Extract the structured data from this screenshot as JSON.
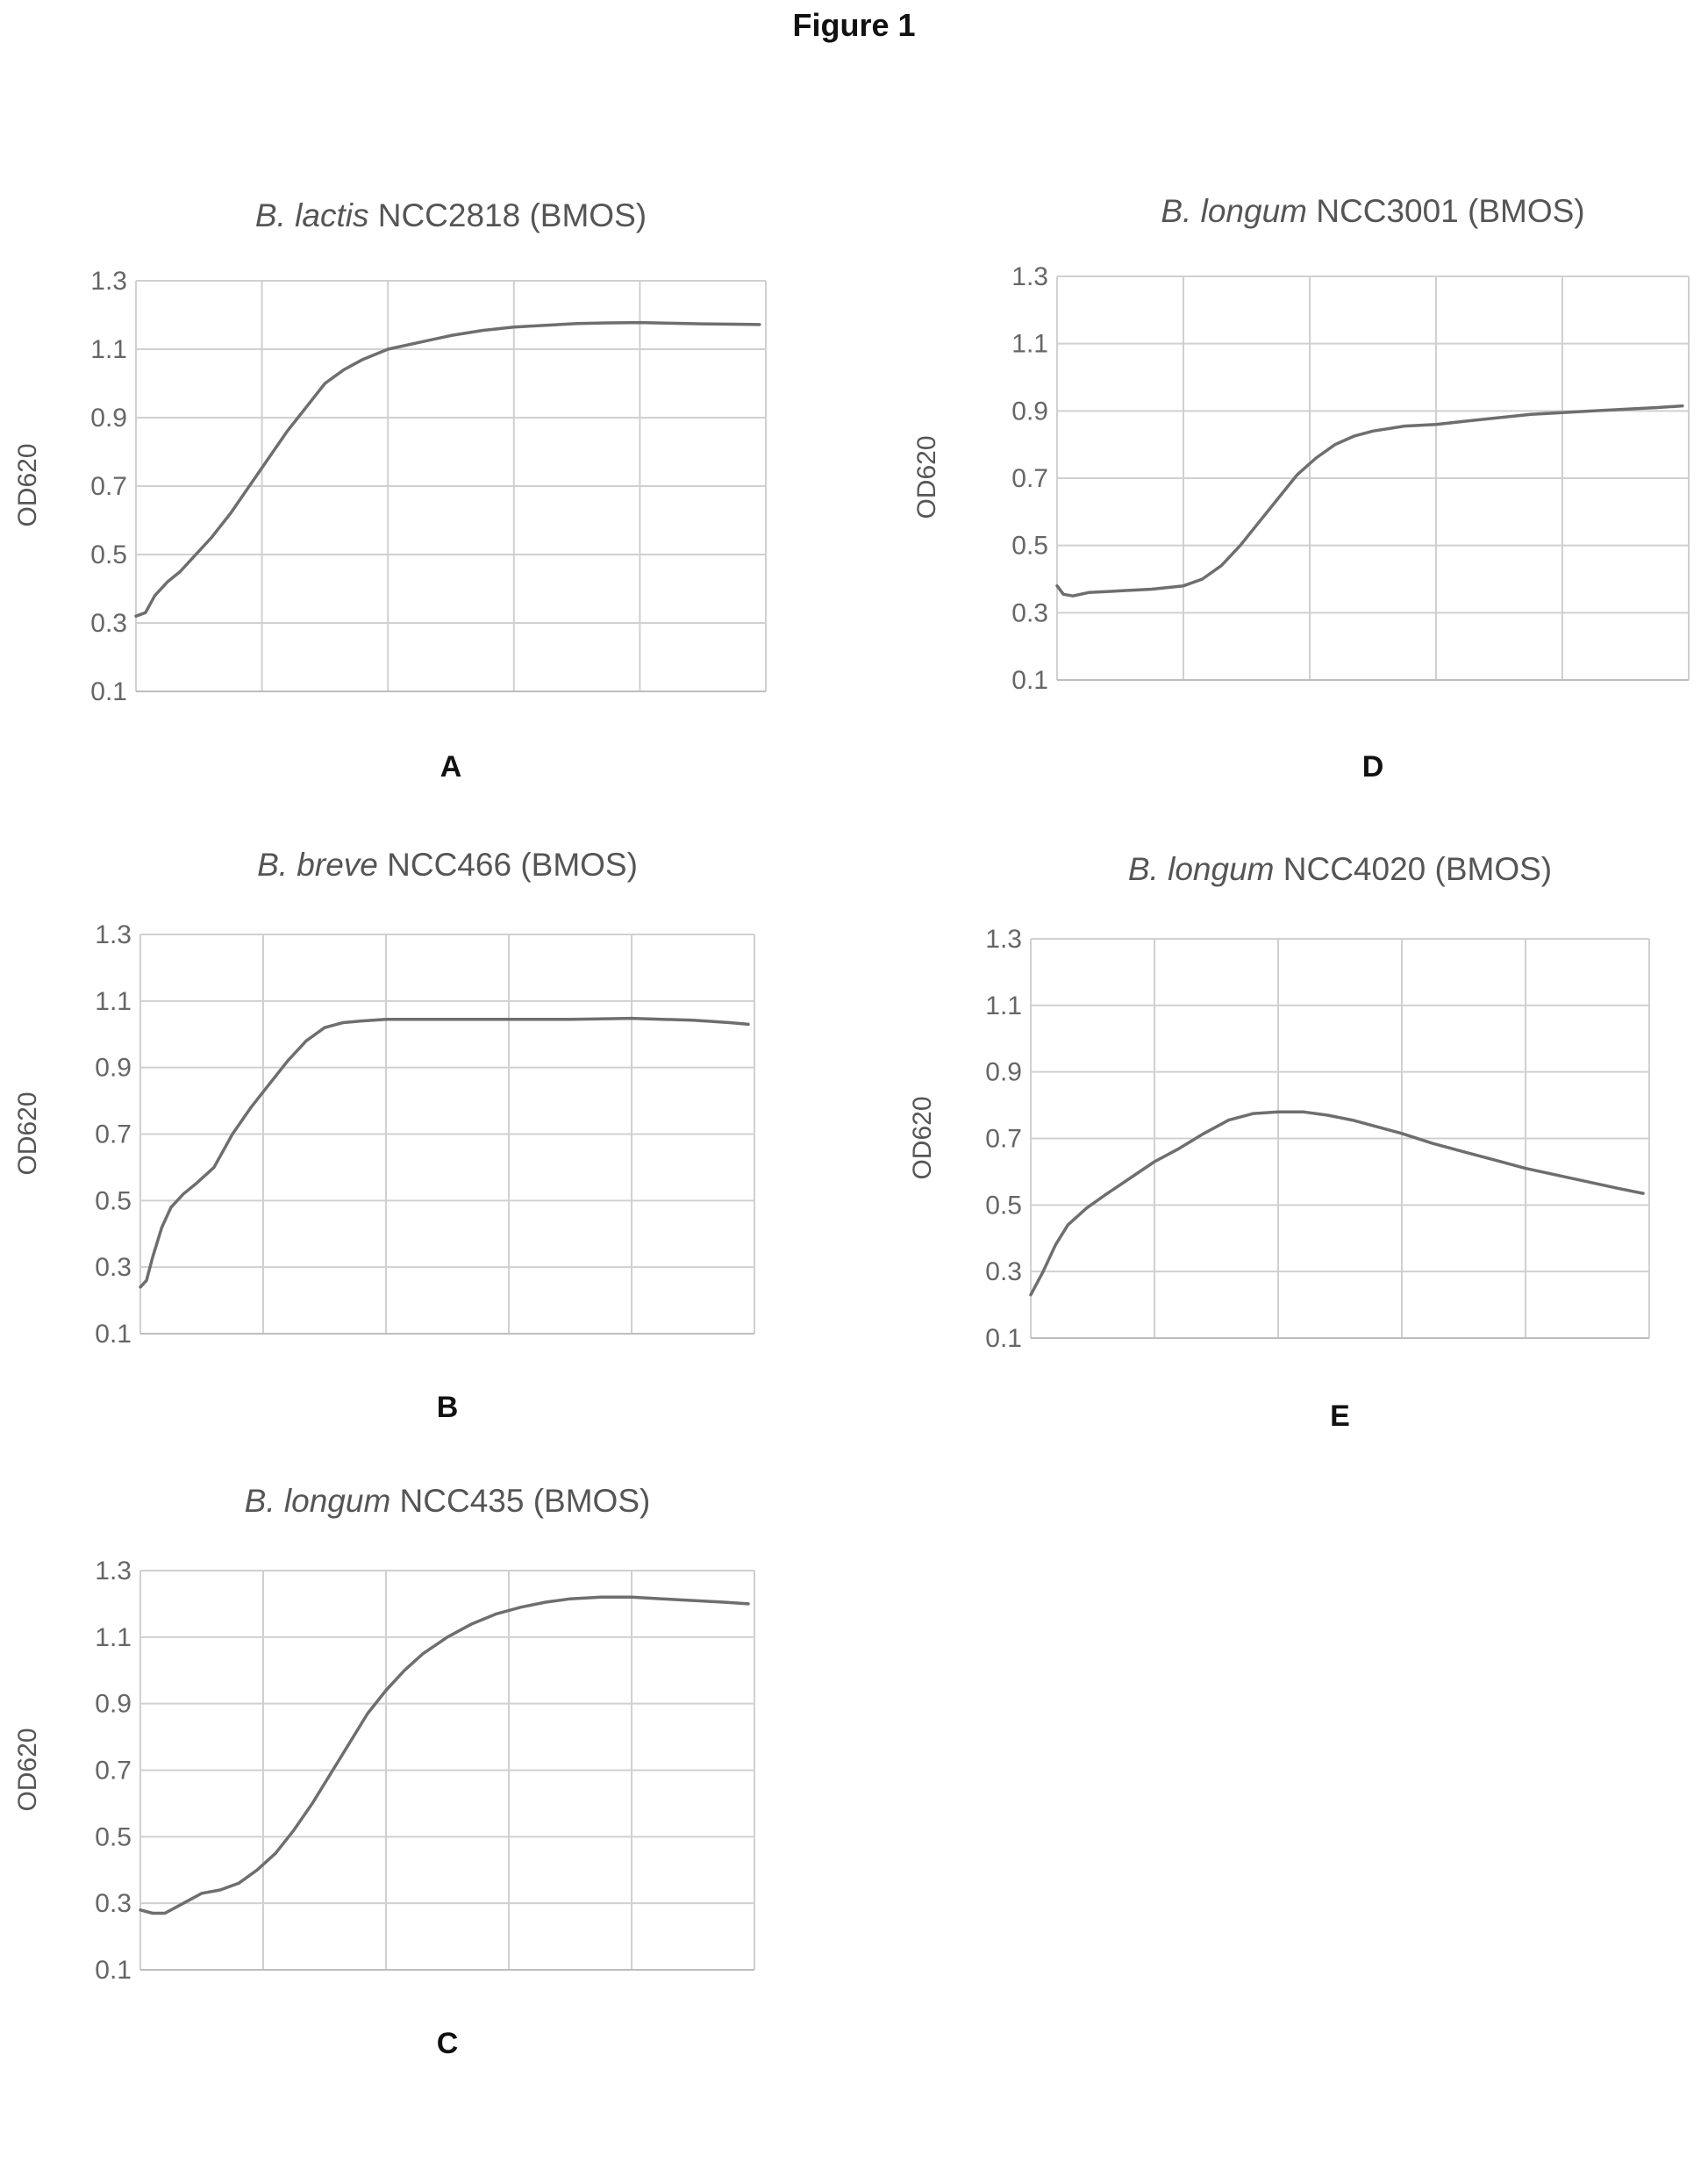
{
  "figure_title": "Figure 1",
  "chart_data": [
    {
      "id": "A",
      "type": "line",
      "title_italic": "B. lactis",
      "title_rest": " NCC2818 (BMOS)",
      "ylabel": "OD620",
      "letter": "A",
      "yticks": [
        "0.1",
        "0.3",
        "0.5",
        "0.7",
        "0.9",
        "1.1",
        "1.3"
      ],
      "ylim": [
        0.1,
        1.3
      ],
      "xlim": [
        0,
        100
      ],
      "grid": true,
      "line_color": "#6e6e6e",
      "series": [
        {
          "x": [
            0,
            1.5,
            3,
            5,
            7,
            9,
            12,
            15,
            18,
            21,
            24,
            27,
            30,
            33,
            36,
            40,
            45,
            50,
            55,
            60,
            65,
            70,
            75,
            80,
            85,
            90,
            95,
            99
          ],
          "y": [
            0.32,
            0.33,
            0.38,
            0.42,
            0.45,
            0.49,
            0.55,
            0.62,
            0.7,
            0.78,
            0.86,
            0.93,
            1.0,
            1.04,
            1.07,
            1.1,
            1.12,
            1.14,
            1.155,
            1.165,
            1.17,
            1.175,
            1.177,
            1.178,
            1.176,
            1.174,
            1.173,
            1.172
          ]
        }
      ]
    },
    {
      "id": "D",
      "type": "line",
      "title_italic": "B. longum",
      "title_rest": " NCC3001 (BMOS)",
      "ylabel": "OD620",
      "letter": "D",
      "yticks": [
        "0.1",
        "0.3",
        "0.5",
        "0.7",
        "0.9",
        "1.1",
        "1.3"
      ],
      "ylim": [
        0.1,
        1.3
      ],
      "xlim": [
        0,
        100
      ],
      "grid": true,
      "line_color": "#6e6e6e",
      "series": [
        {
          "x": [
            0,
            1,
            2.5,
            5,
            10,
            15,
            20,
            23,
            26,
            29,
            32,
            35,
            38,
            41,
            44,
            47,
            50,
            55,
            60,
            65,
            70,
            75,
            80,
            85,
            90,
            95,
            99
          ],
          "y": [
            0.38,
            0.355,
            0.35,
            0.36,
            0.365,
            0.37,
            0.38,
            0.4,
            0.44,
            0.5,
            0.57,
            0.64,
            0.71,
            0.76,
            0.8,
            0.825,
            0.84,
            0.855,
            0.86,
            0.87,
            0.88,
            0.89,
            0.895,
            0.9,
            0.905,
            0.91,
            0.915
          ]
        }
      ]
    },
    {
      "id": "B",
      "type": "line",
      "title_italic": "B. breve",
      "title_rest": " NCC466 (BMOS)",
      "ylabel": "OD620",
      "letter": "B",
      "yticks": [
        "0.1",
        "0.3",
        "0.5",
        "0.7",
        "0.9",
        "1.1",
        "1.3"
      ],
      "ylim": [
        0.1,
        1.3
      ],
      "xlim": [
        0,
        100
      ],
      "grid": true,
      "line_color": "#6e6e6e",
      "series": [
        {
          "x": [
            0,
            1,
            2,
            3.5,
            5,
            7,
            9,
            12,
            15,
            18,
            21,
            24,
            27,
            30,
            33,
            36,
            40,
            45,
            50,
            60,
            70,
            80,
            90,
            96,
            99
          ],
          "y": [
            0.24,
            0.26,
            0.33,
            0.42,
            0.48,
            0.52,
            0.55,
            0.6,
            0.7,
            0.78,
            0.85,
            0.92,
            0.98,
            1.02,
            1.035,
            1.04,
            1.045,
            1.045,
            1.045,
            1.045,
            1.045,
            1.048,
            1.042,
            1.035,
            1.03
          ]
        }
      ]
    },
    {
      "id": "E",
      "type": "line",
      "title_italic": "B. longum",
      "title_rest": " NCC4020 (BMOS)",
      "ylabel": "OD620",
      "letter": "E",
      "yticks": [
        "0.1",
        "0.3",
        "0.5",
        "0.7",
        "0.9",
        "1.1",
        "1.3"
      ],
      "ylim": [
        0.1,
        1.3
      ],
      "xlim": [
        0,
        100
      ],
      "grid": true,
      "line_color": "#6e6e6e",
      "series": [
        {
          "x": [
            0,
            2,
            4,
            6,
            9,
            12,
            16,
            20,
            24,
            28,
            32,
            36,
            40,
            44,
            48,
            52,
            56,
            60,
            65,
            70,
            75,
            80,
            85,
            90,
            95,
            99
          ],
          "y": [
            0.23,
            0.3,
            0.38,
            0.44,
            0.49,
            0.53,
            0.58,
            0.63,
            0.67,
            0.715,
            0.755,
            0.775,
            0.78,
            0.78,
            0.77,
            0.755,
            0.735,
            0.715,
            0.685,
            0.66,
            0.635,
            0.61,
            0.59,
            0.57,
            0.55,
            0.535
          ]
        }
      ]
    },
    {
      "id": "C",
      "type": "line",
      "title_italic": "B. longum",
      "title_rest": " NCC435 (BMOS)",
      "ylabel": "OD620",
      "letter": "C",
      "yticks": [
        "0.1",
        "0.3",
        "0.5",
        "0.7",
        "0.9",
        "1.1",
        "1.3"
      ],
      "ylim": [
        0.1,
        1.3
      ],
      "xlim": [
        0,
        100
      ],
      "grid": true,
      "line_color": "#6e6e6e",
      "series": [
        {
          "x": [
            0,
            2,
            4,
            7,
            10,
            13,
            16,
            19,
            22,
            25,
            28,
            31,
            34,
            37,
            40,
            43,
            46,
            50,
            54,
            58,
            62,
            66,
            70,
            75,
            80,
            85,
            90,
            95,
            99
          ],
          "y": [
            0.28,
            0.27,
            0.27,
            0.3,
            0.33,
            0.34,
            0.36,
            0.4,
            0.45,
            0.52,
            0.6,
            0.69,
            0.78,
            0.87,
            0.94,
            1.0,
            1.05,
            1.1,
            1.14,
            1.17,
            1.19,
            1.205,
            1.215,
            1.22,
            1.22,
            1.215,
            1.21,
            1.205,
            1.2
          ]
        }
      ]
    }
  ]
}
